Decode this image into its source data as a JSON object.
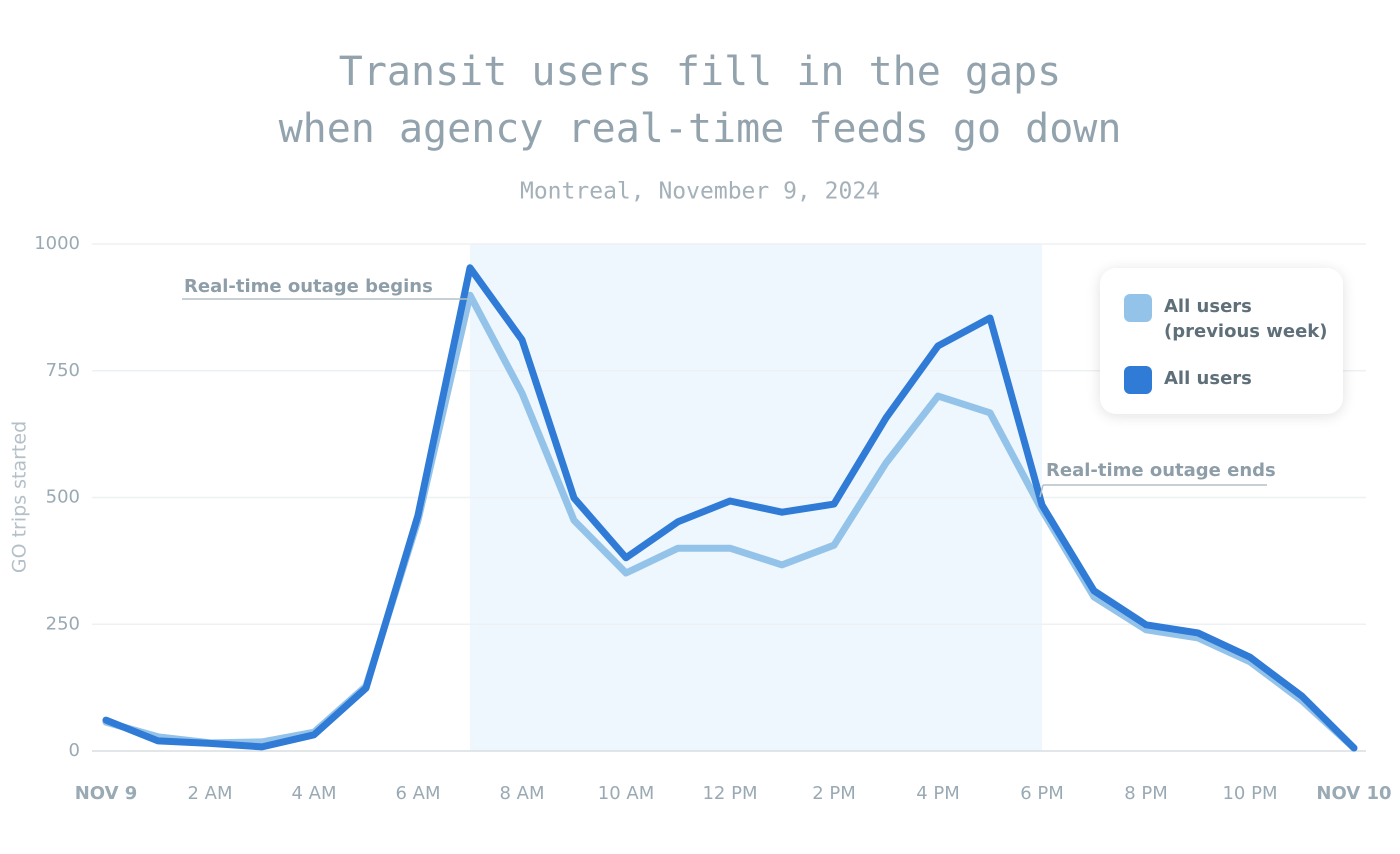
{
  "chart_data": {
    "type": "line",
    "title": [
      "Transit users fill in the gaps",
      "when agency real-time feeds go down"
    ],
    "subtitle": "Montreal, November 9, 2024",
    "y_label": "GO trips started",
    "x": [
      0,
      1,
      2,
      3,
      4,
      5,
      6,
      7,
      8,
      9,
      10,
      11,
      12,
      13,
      14,
      15,
      16,
      17,
      18,
      19,
      20,
      21,
      22,
      23,
      24
    ],
    "categories": [
      "NOV 9",
      null,
      "2 AM",
      null,
      "4 AM",
      null,
      "6 AM",
      null,
      "8 AM",
      null,
      "10 AM",
      null,
      "12 PM",
      null,
      "2 PM",
      null,
      "4 PM",
      null,
      "6 PM",
      null,
      "8 PM",
      null,
      "10 PM",
      null,
      "NOV 10"
    ],
    "xlim": [
      0,
      24
    ],
    "ylim": [
      0,
      1000
    ],
    "yticks": [
      0,
      250,
      500,
      750,
      1000
    ],
    "grid": true,
    "legend": "upper right",
    "outage": {
      "start": 7,
      "end": 18,
      "color": "#eef6fe"
    },
    "annotations": [
      {
        "text": "Real-time outage begins",
        "x": 7
      },
      {
        "text": "Real-time outage ends",
        "x": 18
      }
    ],
    "series": [
      {
        "name": "All users (previous week)",
        "color": "#94c3ea",
        "values": [
          57,
          28,
          16,
          18,
          37,
          128,
          455,
          899,
          706,
          455,
          351,
          400,
          400,
          367,
          406,
          568,
          700,
          667,
          475,
          304,
          239,
          223,
          176,
          99,
          6
        ]
      },
      {
        "name": "All users",
        "color": "#2f7bd6",
        "values": [
          61,
          20,
          15,
          8,
          32,
          124,
          465,
          953,
          811,
          499,
          381,
          452,
          493,
          471,
          487,
          657,
          799,
          854,
          485,
          316,
          249,
          233,
          185,
          108,
          6
        ]
      }
    ]
  }
}
